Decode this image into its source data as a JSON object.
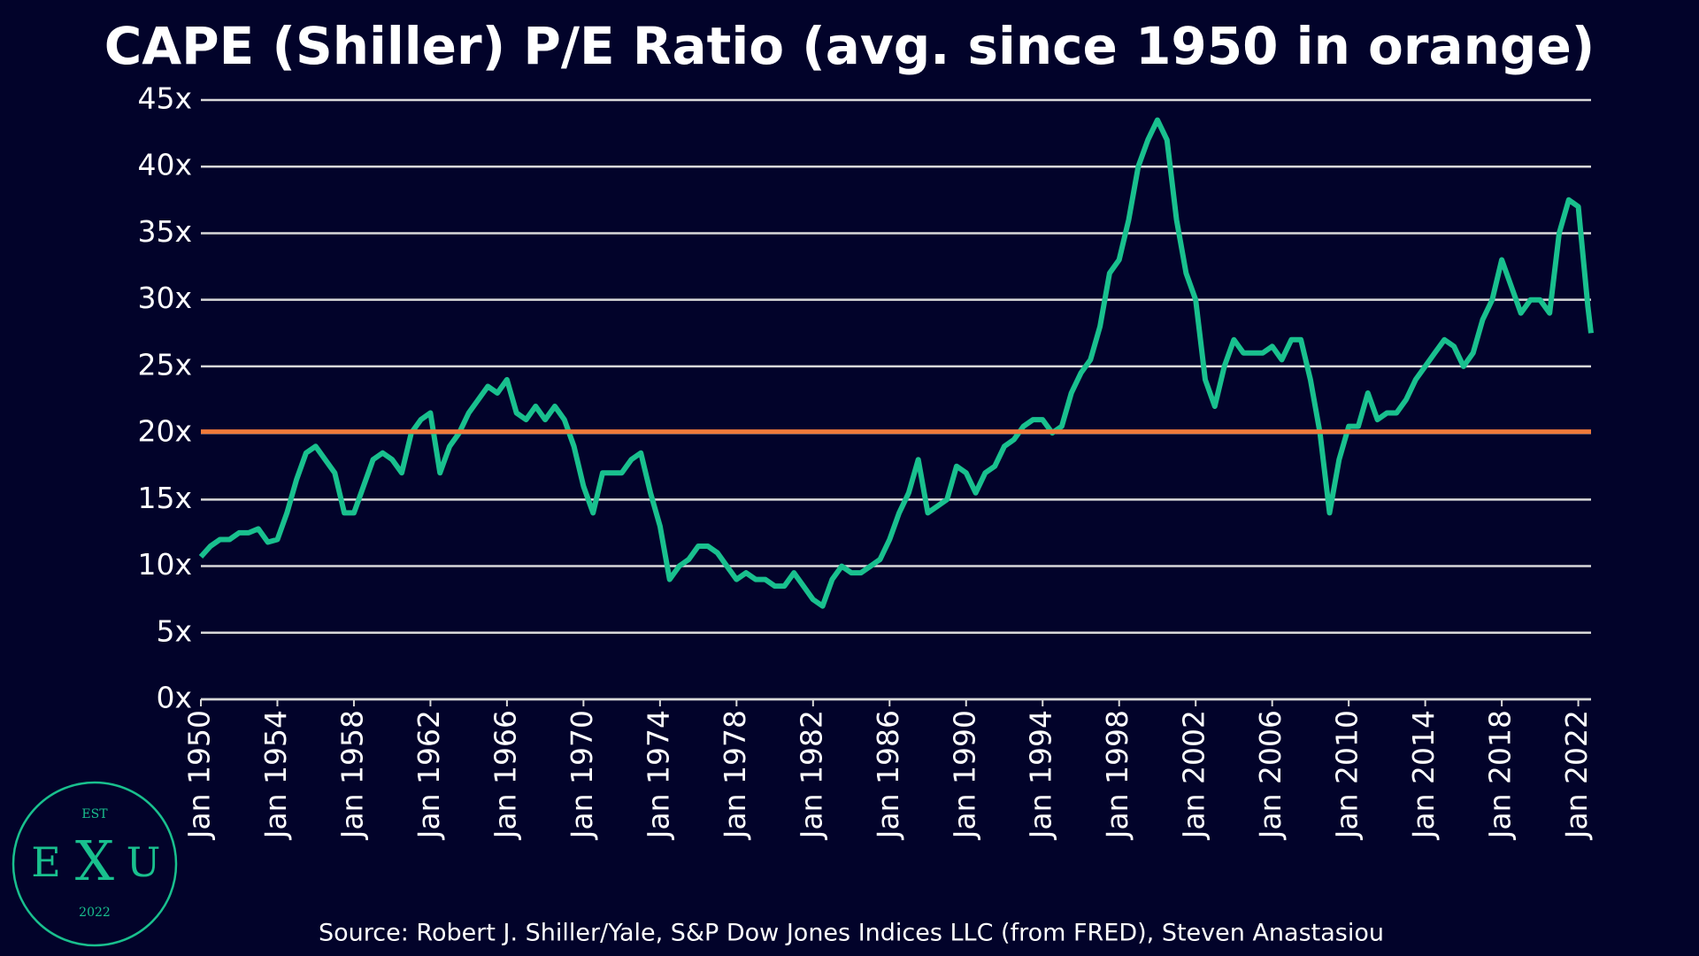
{
  "chart_data": {
    "type": "line",
    "title": "CAPE (Shiller) P/E Ratio (avg. since 1950 in orange)",
    "source": "Source: Robert J. Shiller/Yale, S&P Dow Jones Indices LLC (from FRED), Steven Anastasiou",
    "x": [
      "1950-01",
      "1950-07",
      "1951-01",
      "1951-07",
      "1952-01",
      "1952-07",
      "1953-01",
      "1953-07",
      "1954-01",
      "1954-07",
      "1955-01",
      "1955-07",
      "1956-01",
      "1956-07",
      "1957-01",
      "1957-07",
      "1958-01",
      "1958-07",
      "1959-01",
      "1959-07",
      "1960-01",
      "1960-07",
      "1961-01",
      "1961-07",
      "1962-01",
      "1962-07",
      "1963-01",
      "1963-07",
      "1964-01",
      "1964-07",
      "1965-01",
      "1965-07",
      "1966-01",
      "1966-07",
      "1967-01",
      "1967-07",
      "1968-01",
      "1968-07",
      "1969-01",
      "1969-07",
      "1970-01",
      "1970-07",
      "1971-01",
      "1971-07",
      "1972-01",
      "1972-07",
      "1973-01",
      "1973-07",
      "1974-01",
      "1974-07",
      "1975-01",
      "1975-07",
      "1976-01",
      "1976-07",
      "1977-01",
      "1977-07",
      "1978-01",
      "1978-07",
      "1979-01",
      "1979-07",
      "1980-01",
      "1980-07",
      "1981-01",
      "1981-07",
      "1982-01",
      "1982-07",
      "1983-01",
      "1983-07",
      "1984-01",
      "1984-07",
      "1985-01",
      "1985-07",
      "1986-01",
      "1986-07",
      "1987-01",
      "1987-07",
      "1988-01",
      "1988-07",
      "1989-01",
      "1989-07",
      "1990-01",
      "1990-07",
      "1991-01",
      "1991-07",
      "1992-01",
      "1992-07",
      "1993-01",
      "1993-07",
      "1994-01",
      "1994-07",
      "1995-01",
      "1995-07",
      "1996-01",
      "1996-07",
      "1997-01",
      "1997-07",
      "1998-01",
      "1998-07",
      "1999-01",
      "1999-07",
      "2000-01",
      "2000-07",
      "2001-01",
      "2001-07",
      "2002-01",
      "2002-07",
      "2003-01",
      "2003-07",
      "2004-01",
      "2004-07",
      "2005-01",
      "2005-07",
      "2006-01",
      "2006-07",
      "2007-01",
      "2007-07",
      "2008-01",
      "2008-07",
      "2009-01",
      "2009-07",
      "2010-01",
      "2010-07",
      "2011-01",
      "2011-07",
      "2012-01",
      "2012-07",
      "2013-01",
      "2013-07",
      "2014-01",
      "2014-07",
      "2015-01",
      "2015-07",
      "2016-01",
      "2016-07",
      "2017-01",
      "2017-07",
      "2018-01",
      "2018-07",
      "2019-01",
      "2019-07",
      "2020-01",
      "2020-07",
      "2021-01",
      "2021-07",
      "2022-01",
      "2022-07",
      "2022-09"
    ],
    "series": [
      {
        "color": "#19c08e",
        "values": [
          10.7,
          11.5,
          12,
          12,
          12.5,
          12.5,
          12.8,
          11.8,
          12,
          14,
          16.5,
          18.5,
          19,
          18,
          17,
          14,
          14,
          16,
          18,
          18.5,
          18,
          17,
          20,
          21,
          21.5,
          17,
          19,
          20,
          21.5,
          22.5,
          23.5,
          23,
          24,
          21.5,
          21,
          22,
          21,
          22,
          21,
          19,
          16,
          14,
          17,
          17,
          17,
          18,
          18.5,
          15.5,
          13,
          9,
          10,
          10.5,
          11.5,
          11.5,
          11,
          10,
          9,
          9.5,
          9,
          9,
          8.5,
          8.5,
          9.5,
          8.5,
          7.5,
          7,
          9,
          10,
          9.5,
          9.5,
          10,
          10.5,
          12,
          14,
          15.5,
          18,
          14,
          14.5,
          15,
          17.5,
          17,
          15.5,
          17,
          17.5,
          19,
          19.5,
          20.5,
          21,
          21,
          20,
          20.5,
          23,
          24.5,
          25.5,
          28,
          32,
          33,
          36,
          40,
          42,
          43.5,
          42,
          36,
          32,
          30,
          24,
          22,
          25,
          27,
          26,
          26,
          26,
          26.5,
          25.5,
          27,
          27,
          24,
          20,
          14,
          18,
          20.5,
          20.5,
          23,
          21,
          21.5,
          21.5,
          22.5,
          24,
          25,
          26,
          27,
          26.5,
          25,
          26,
          28.5,
          30,
          33,
          31,
          29,
          30,
          30,
          29,
          35,
          37.5,
          37,
          29.5,
          27.5
        ]
      }
    ],
    "hlines": [
      {
        "value": 20.1,
        "color": "#f07a3a"
      }
    ],
    "xlim": [
      "1950-01",
      "2022-09"
    ],
    "xticks": [
      {
        "value": "1950-01",
        "label": "Jan 1950"
      },
      {
        "value": "1954-01",
        "label": "Jan 1954"
      },
      {
        "value": "1958-01",
        "label": "Jan 1958"
      },
      {
        "value": "1962-01",
        "label": "Jan 1962"
      },
      {
        "value": "1966-01",
        "label": "Jan 1966"
      },
      {
        "value": "1970-01",
        "label": "Jan 1970"
      },
      {
        "value": "1974-01",
        "label": "Jan 1974"
      },
      {
        "value": "1978-01",
        "label": "Jan 1978"
      },
      {
        "value": "1982-01",
        "label": "Jan 1982"
      },
      {
        "value": "1986-01",
        "label": "Jan 1986"
      },
      {
        "value": "1990-01",
        "label": "Jan 1990"
      },
      {
        "value": "1994-01",
        "label": "Jan 1994"
      },
      {
        "value": "1998-01",
        "label": "Jan 1998"
      },
      {
        "value": "2002-01",
        "label": "Jan 2002"
      },
      {
        "value": "2006-01",
        "label": "Jan 2006"
      },
      {
        "value": "2010-01",
        "label": "Jan 2010"
      },
      {
        "value": "2014-01",
        "label": "Jan 2014"
      },
      {
        "value": "2018-01",
        "label": "Jan 2018"
      },
      {
        "value": "2022-01",
        "label": "Jan 2022"
      }
    ],
    "ylim": [
      0,
      45
    ],
    "yticks": [
      {
        "value": 0,
        "label": "0x"
      },
      {
        "value": 5,
        "label": "5x"
      },
      {
        "value": 10,
        "label": "10x"
      },
      {
        "value": 15,
        "label": "15x"
      },
      {
        "value": 20,
        "label": "20x"
      },
      {
        "value": 25,
        "label": "25x"
      },
      {
        "value": 30,
        "label": "30x"
      },
      {
        "value": 35,
        "label": "35x"
      },
      {
        "value": 40,
        "label": "40x"
      },
      {
        "value": 45,
        "label": "45x"
      }
    ],
    "grid": true
  },
  "logo": {
    "top": "EST",
    "left": "E",
    "middle": "X",
    "right": "U",
    "bottom": "2022"
  }
}
